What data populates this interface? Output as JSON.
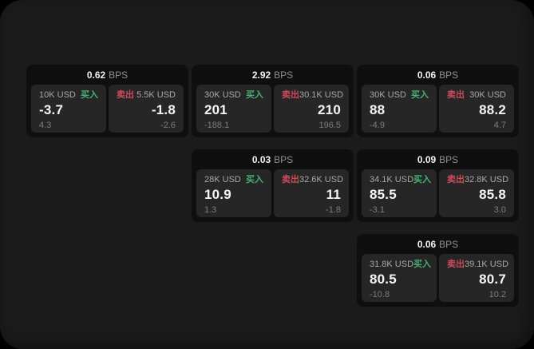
{
  "labels": {
    "bps_suffix": "BPS",
    "buy": "买入",
    "sell": "卖出"
  },
  "colors": {
    "buy_green": "#42b375",
    "sell_red": "#d04a5a",
    "container_bg": "#1b1b1b",
    "card_bg": "#0f0f0f",
    "panel_bg": "#262626"
  },
  "cards": [
    {
      "row": 1,
      "col": 1,
      "bps": "0.62",
      "buy": {
        "amount": "10K USD",
        "value": "-3.7",
        "sub": "4.3"
      },
      "sell": {
        "amount": "5.5K USD",
        "value": "-1.8",
        "sub": "-2.6"
      }
    },
    {
      "row": 1,
      "col": 2,
      "bps": "2.92",
      "buy": {
        "amount": "30K USD",
        "value": "201",
        "sub": "-188.1"
      },
      "sell": {
        "amount": "30.1K USD",
        "value": "210",
        "sub": "196.5"
      }
    },
    {
      "row": 1,
      "col": 3,
      "bps": "0.06",
      "buy": {
        "amount": "30K USD",
        "value": "88",
        "sub": "-4.9"
      },
      "sell": {
        "amount": "30K USD",
        "value": "88.2",
        "sub": "4.7"
      }
    },
    {
      "row": 2,
      "col": 2,
      "bps": "0.03",
      "buy": {
        "amount": "28K USD",
        "value": "10.9",
        "sub": "1.3"
      },
      "sell": {
        "amount": "32.6K USD",
        "value": "11",
        "sub": "-1.8"
      }
    },
    {
      "row": 2,
      "col": 3,
      "bps": "0.09",
      "buy": {
        "amount": "34.1K USD",
        "value": "85.5",
        "sub": "-3.1"
      },
      "sell": {
        "amount": "32.8K USD",
        "value": "85.8",
        "sub": "3.0"
      }
    },
    {
      "row": 3,
      "col": 3,
      "bps": "0.06",
      "buy": {
        "amount": "31.8K USD",
        "value": "80.5",
        "sub": "-10.8"
      },
      "sell": {
        "amount": "39.1K USD",
        "value": "80.7",
        "sub": "10.2"
      }
    }
  ]
}
